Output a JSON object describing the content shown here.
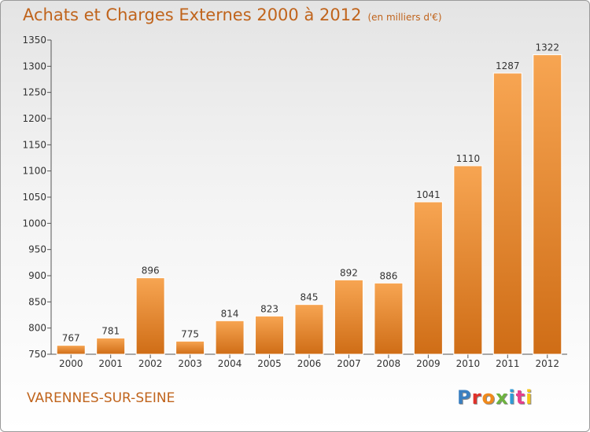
{
  "header": {
    "title": "Achats et Charges Externes 2000 à 2012",
    "subtitle": "(en milliers d'€)"
  },
  "footer": {
    "city": "VARENNES-SUR-SEINE",
    "logo_text": "Proxiti",
    "logo_colors": [
      "#3a7fc1",
      "#e0312a",
      "#f08a1c",
      "#6db33f",
      "#2f9bd6",
      "#e83e8c",
      "#f5c518"
    ]
  },
  "chart_data": {
    "type": "bar",
    "categories": [
      "2000",
      "2001",
      "2002",
      "2003",
      "2004",
      "2005",
      "2006",
      "2007",
      "2008",
      "2009",
      "2010",
      "2011",
      "2012"
    ],
    "values": [
      767,
      781,
      896,
      775,
      814,
      823,
      845,
      892,
      886,
      1041,
      1110,
      1287,
      1322
    ],
    "title": "Achats et Charges Externes 2000 à 2012",
    "xlabel": "",
    "ylabel": "",
    "ylim": [
      750,
      1350
    ],
    "yticks": [
      750,
      800,
      850,
      900,
      950,
      1000,
      1050,
      1100,
      1150,
      1200,
      1250,
      1300,
      1350
    ],
    "grid": false,
    "bar_color_light": "#f7a552",
    "bar_color_dark": "#cf6d16"
  }
}
